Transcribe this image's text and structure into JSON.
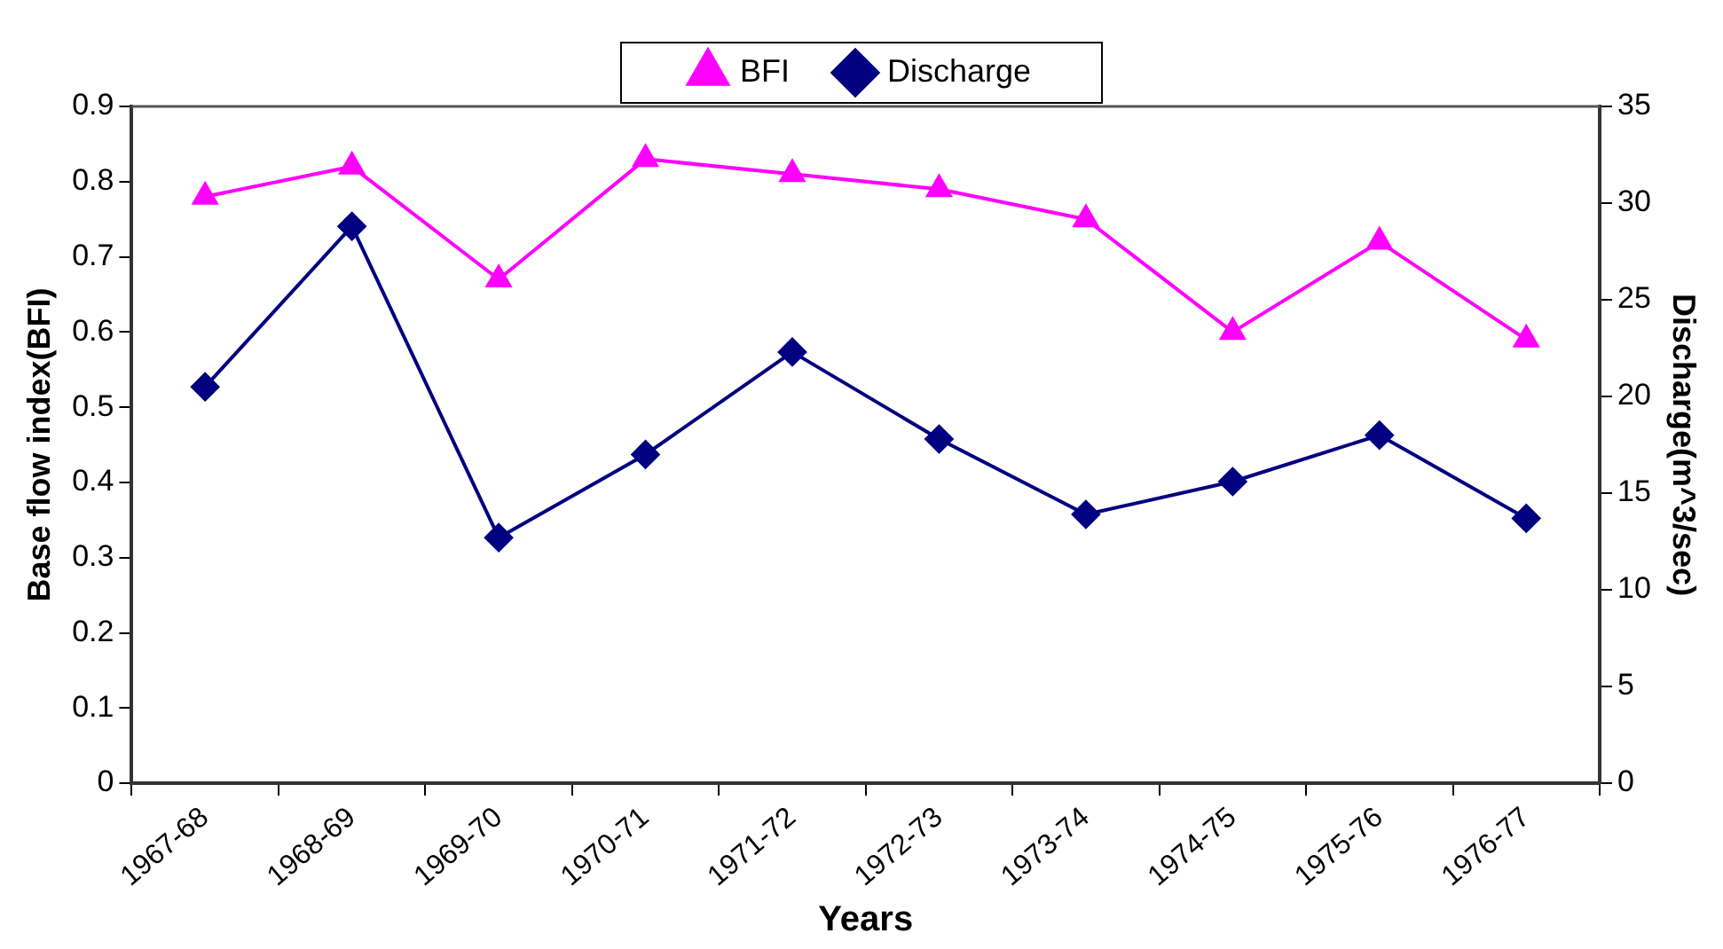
{
  "chart_data": {
    "type": "line",
    "xlabel": "Years",
    "ylabel": "Base flow index(BFI)",
    "y2label": "Discharge(m^3/sec)",
    "categories": [
      "1967-68",
      "1968-69",
      "1969-70",
      "1970-71",
      "1971-72",
      "1972-73",
      "1973-74",
      "1974-75",
      "1975-76",
      "1976-77"
    ],
    "series": [
      {
        "name": "BFI",
        "color": "#ff00ff",
        "marker": "triangle",
        "values": [
          0.78,
          0.82,
          0.67,
          0.83,
          0.81,
          0.79,
          0.75,
          0.6,
          0.72,
          0.59
        ]
      },
      {
        "name": "Discharge",
        "color": "#000080",
        "marker": "diamond",
        "axis": "y2",
        "values": [
          20.5,
          28.8,
          12.7,
          17.0,
          22.3,
          17.8,
          13.9,
          15.6,
          18.0,
          13.7
        ]
      }
    ],
    "ylim": [
      0,
      0.9
    ],
    "yticks": [
      0,
      0.1,
      0.2,
      0.3,
      0.4,
      0.5,
      0.6,
      0.7,
      0.8,
      0.9
    ],
    "y2lim": [
      0,
      35
    ],
    "y2ticks": [
      0,
      5,
      10,
      15,
      20,
      25,
      30,
      35
    ],
    "grid": false,
    "legend": "top",
    "line_style": "solid"
  }
}
